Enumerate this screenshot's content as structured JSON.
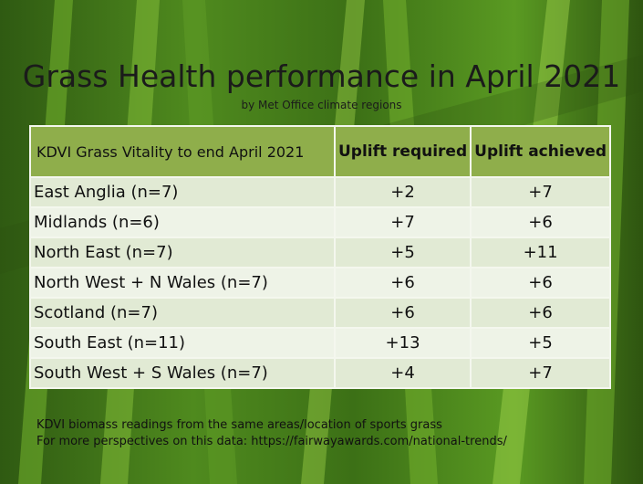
{
  "title": "Grass Health performance in April 2021",
  "subtitle": "by Met Office climate regions",
  "table": {
    "header": [
      "KDVI Grass Vitality to end April 2021",
      "Uplift required",
      "Uplift achieved"
    ],
    "rows": [
      [
        "East Anglia (n=7)",
        "+2",
        "+7"
      ],
      [
        "Midlands (n=6)",
        "+7",
        "+6"
      ],
      [
        "North East (n=7)",
        "+5",
        "+11"
      ],
      [
        "North West + N Wales (n=7)",
        "+6",
        "+6"
      ],
      [
        "Scotland (n=7)",
        "+6",
        "+6"
      ],
      [
        "South East (n=11)",
        "+13",
        "+5"
      ],
      [
        "South West + S Wales (n=7)",
        "+4",
        "+7"
      ]
    ]
  },
  "footnotes": [
    "KDVI biomass readings from the same areas/location of sports grass",
    "For more perspectives on this data:  https://fairwayawards.com/national-trends/"
  ]
}
